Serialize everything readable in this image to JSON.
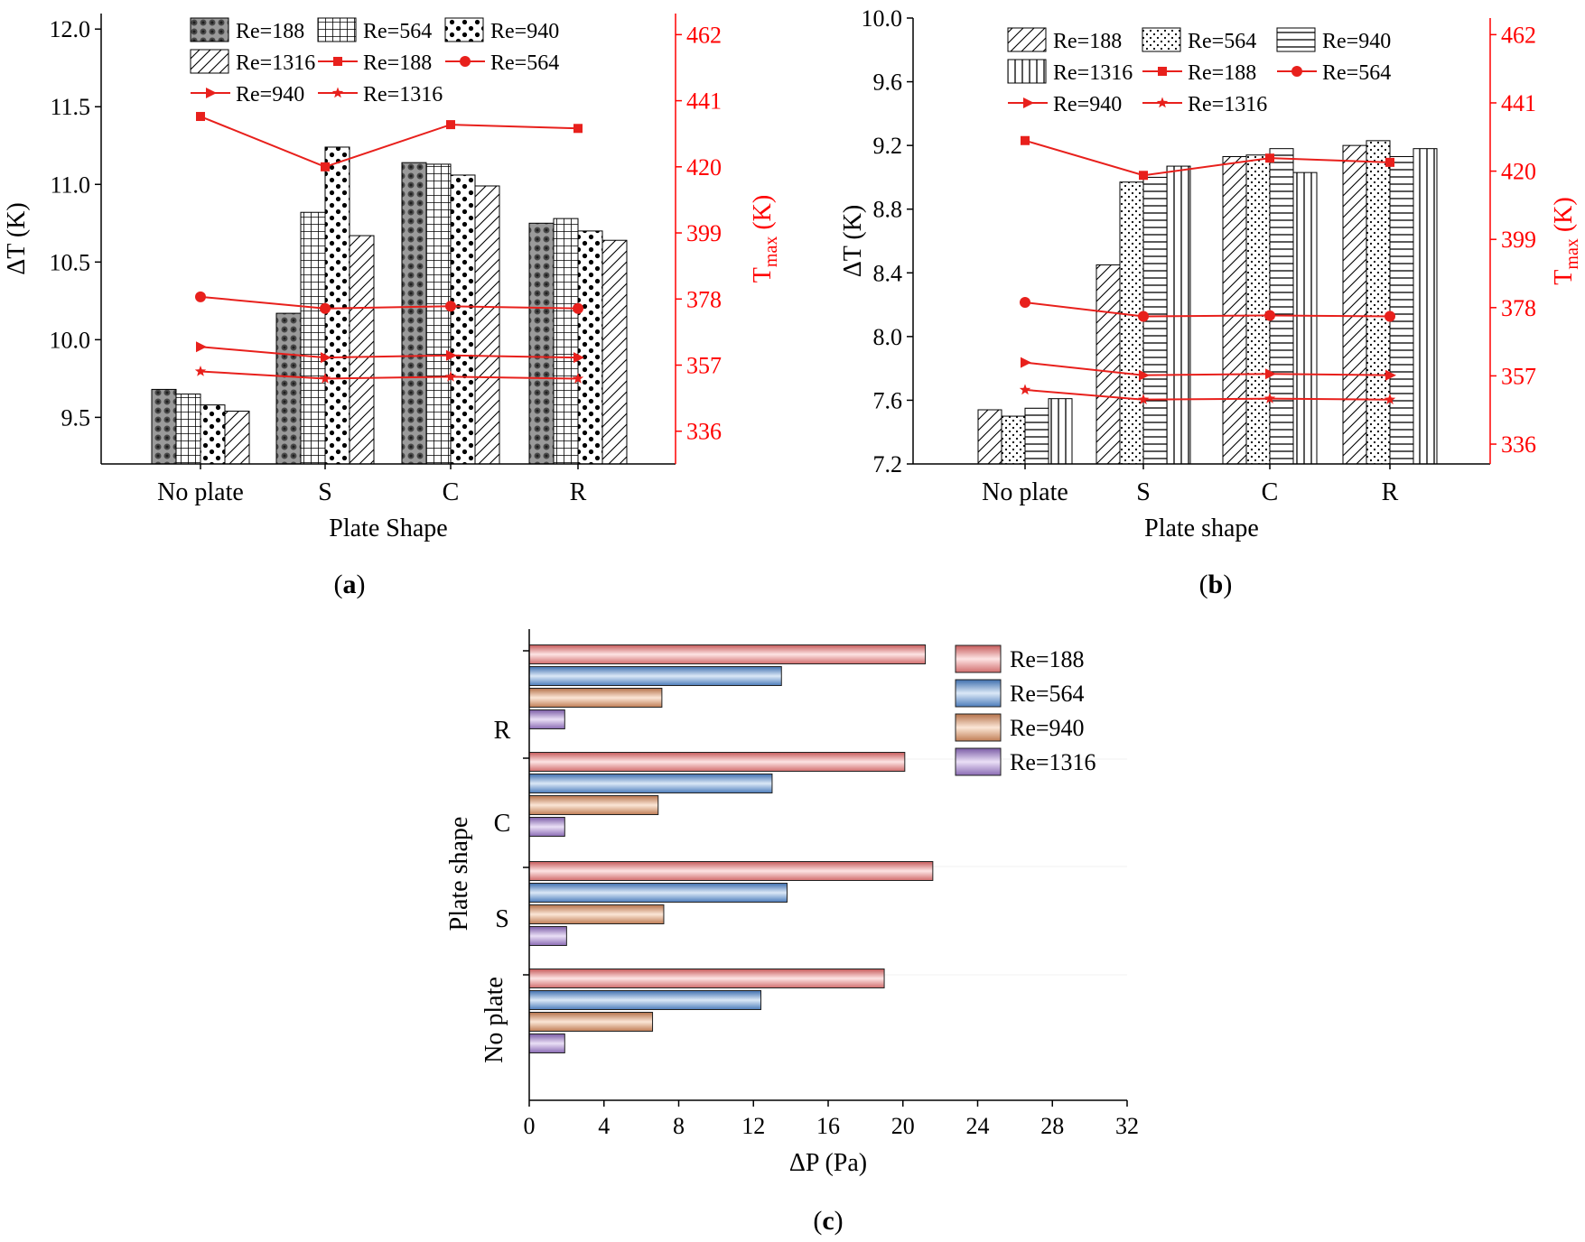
{
  "colors": {
    "axis": "#000000",
    "secondary_axis": "#ff0000",
    "series_line": "#e8201c",
    "bar_fill": "#ffffff",
    "bar_stroke": "#000000",
    "hbar_re188": "#f1a9a9",
    "hbar_re564": "#8db3e2",
    "hbar_re940": "#e7b898",
    "hbar_re1316": "#b9a2d6"
  },
  "panel_labels": {
    "a": "a",
    "b": "b",
    "c": "c"
  },
  "chart_data": [
    {
      "id": "a",
      "type": "bar+line",
      "title": "",
      "xlabel": "Plate Shape",
      "ylabel": "ΔT (K)",
      "y2label_main": "T",
      "y2label_sub": "max",
      "y2label_unit": " (K)",
      "categories": [
        "No plate",
        "S",
        "C",
        "R"
      ],
      "ylim": [
        9.2,
        12.1
      ],
      "yticks": [
        9.5,
        10.0,
        10.5,
        11.0,
        11.5,
        12.0
      ],
      "ytick_labels": [
        "9.5",
        "10.0",
        "10.5",
        "11.0",
        "11.5",
        "12.0"
      ],
      "y2lim": [
        325.6,
        468.7
      ],
      "y2ticks": [
        336,
        357,
        378,
        399,
        420,
        441,
        462
      ],
      "y2tick_labels": [
        "336",
        "357",
        "378",
        "399",
        "420",
        "441",
        "462"
      ],
      "bar_series": [
        {
          "name": "Re=188",
          "pattern": "dots",
          "values": [
            9.68,
            10.17,
            11.14,
            10.75
          ]
        },
        {
          "name": "Re=564",
          "pattern": "grid",
          "values": [
            9.65,
            10.82,
            11.13,
            10.78
          ]
        },
        {
          "name": "Re=940",
          "pattern": "spots",
          "values": [
            9.58,
            11.24,
            11.06,
            10.7
          ]
        },
        {
          "name": "Re=1316",
          "pattern": "diag",
          "values": [
            9.54,
            10.67,
            10.99,
            10.64
          ]
        }
      ],
      "line_series": [
        {
          "name": "Re=188",
          "marker": "square",
          "values": [
            436.0,
            420.0,
            433.4,
            432.2
          ]
        },
        {
          "name": "Re=564",
          "marker": "circle",
          "values": [
            378.7,
            375.0,
            375.7,
            375.0
          ]
        },
        {
          "name": "Re=940",
          "marker": "triangle",
          "values": [
            362.8,
            359.4,
            360.1,
            359.4
          ]
        },
        {
          "name": "Re=1316",
          "marker": "star",
          "values": [
            355.0,
            352.7,
            353.3,
            352.7
          ]
        }
      ]
    },
    {
      "id": "b",
      "type": "bar+line",
      "title": "",
      "xlabel": "Plate shape",
      "ylabel": "ΔT (K)",
      "y2label_main": "T",
      "y2label_sub": "max",
      "y2label_unit": " (K)",
      "categories": [
        "No plate",
        "S",
        "C",
        "R"
      ],
      "ylim": [
        7.2,
        10.0
      ],
      "yticks": [
        7.2,
        7.6,
        8.0,
        8.4,
        8.8,
        9.2,
        9.6,
        10.0
      ],
      "ytick_labels": [
        "7.2",
        "7.6",
        "8.0",
        "8.4",
        "8.8",
        "9.2",
        "9.6",
        "10.0"
      ],
      "y2lim": [
        329.9,
        467.1
      ],
      "y2ticks": [
        336,
        357,
        378,
        399,
        420,
        441,
        462
      ],
      "y2tick_labels": [
        "336",
        "357",
        "378",
        "399",
        "420",
        "441",
        "462"
      ],
      "bar_series": [
        {
          "name": "Re=188",
          "pattern": "diag",
          "values": [
            7.54,
            8.45,
            9.13,
            9.2
          ]
        },
        {
          "name": "Re=564",
          "pattern": "dots",
          "values": [
            7.5,
            8.97,
            9.14,
            9.23
          ]
        },
        {
          "name": "Re=940",
          "pattern": "hline",
          "values": [
            7.55,
            9.0,
            9.18,
            9.13
          ]
        },
        {
          "name": "Re=1316",
          "pattern": "vline",
          "values": [
            7.61,
            9.07,
            9.03,
            9.18
          ]
        }
      ],
      "line_series": [
        {
          "name": "Re=188",
          "marker": "square",
          "values": [
            429.4,
            418.7,
            424.0,
            422.7
          ]
        },
        {
          "name": "Re=564",
          "marker": "circle",
          "values": [
            379.6,
            375.3,
            375.6,
            375.3
          ]
        },
        {
          "name": "Re=940",
          "marker": "triangle",
          "values": [
            361.1,
            357.2,
            357.6,
            357.2
          ]
        },
        {
          "name": "Re=1316",
          "marker": "star",
          "values": [
            352.7,
            349.7,
            350.0,
            349.7
          ]
        }
      ]
    },
    {
      "id": "c",
      "type": "bar",
      "orientation": "horizontal",
      "title": "",
      "xlabel": "ΔP (Pa)",
      "ylabel": "Plate shape",
      "categories": [
        "No plate",
        "S",
        "C",
        "R"
      ],
      "xlim": [
        0,
        32
      ],
      "xticks": [
        0,
        4,
        8,
        12,
        16,
        20,
        24,
        28,
        32
      ],
      "xtick_labels": [
        "0",
        "4",
        "8",
        "12",
        "16",
        "20",
        "24",
        "28",
        "32"
      ],
      "series": [
        {
          "name": "Re=188",
          "values": [
            19.0,
            21.6,
            20.1,
            21.2
          ]
        },
        {
          "name": "Re=564",
          "values": [
            12.4,
            13.8,
            13.0,
            13.5
          ]
        },
        {
          "name": "Re=940",
          "values": [
            6.6,
            7.2,
            6.9,
            7.1
          ]
        },
        {
          "name": "Re=1316",
          "values": [
            1.9,
            2.0,
            1.9,
            1.9
          ]
        }
      ]
    }
  ]
}
